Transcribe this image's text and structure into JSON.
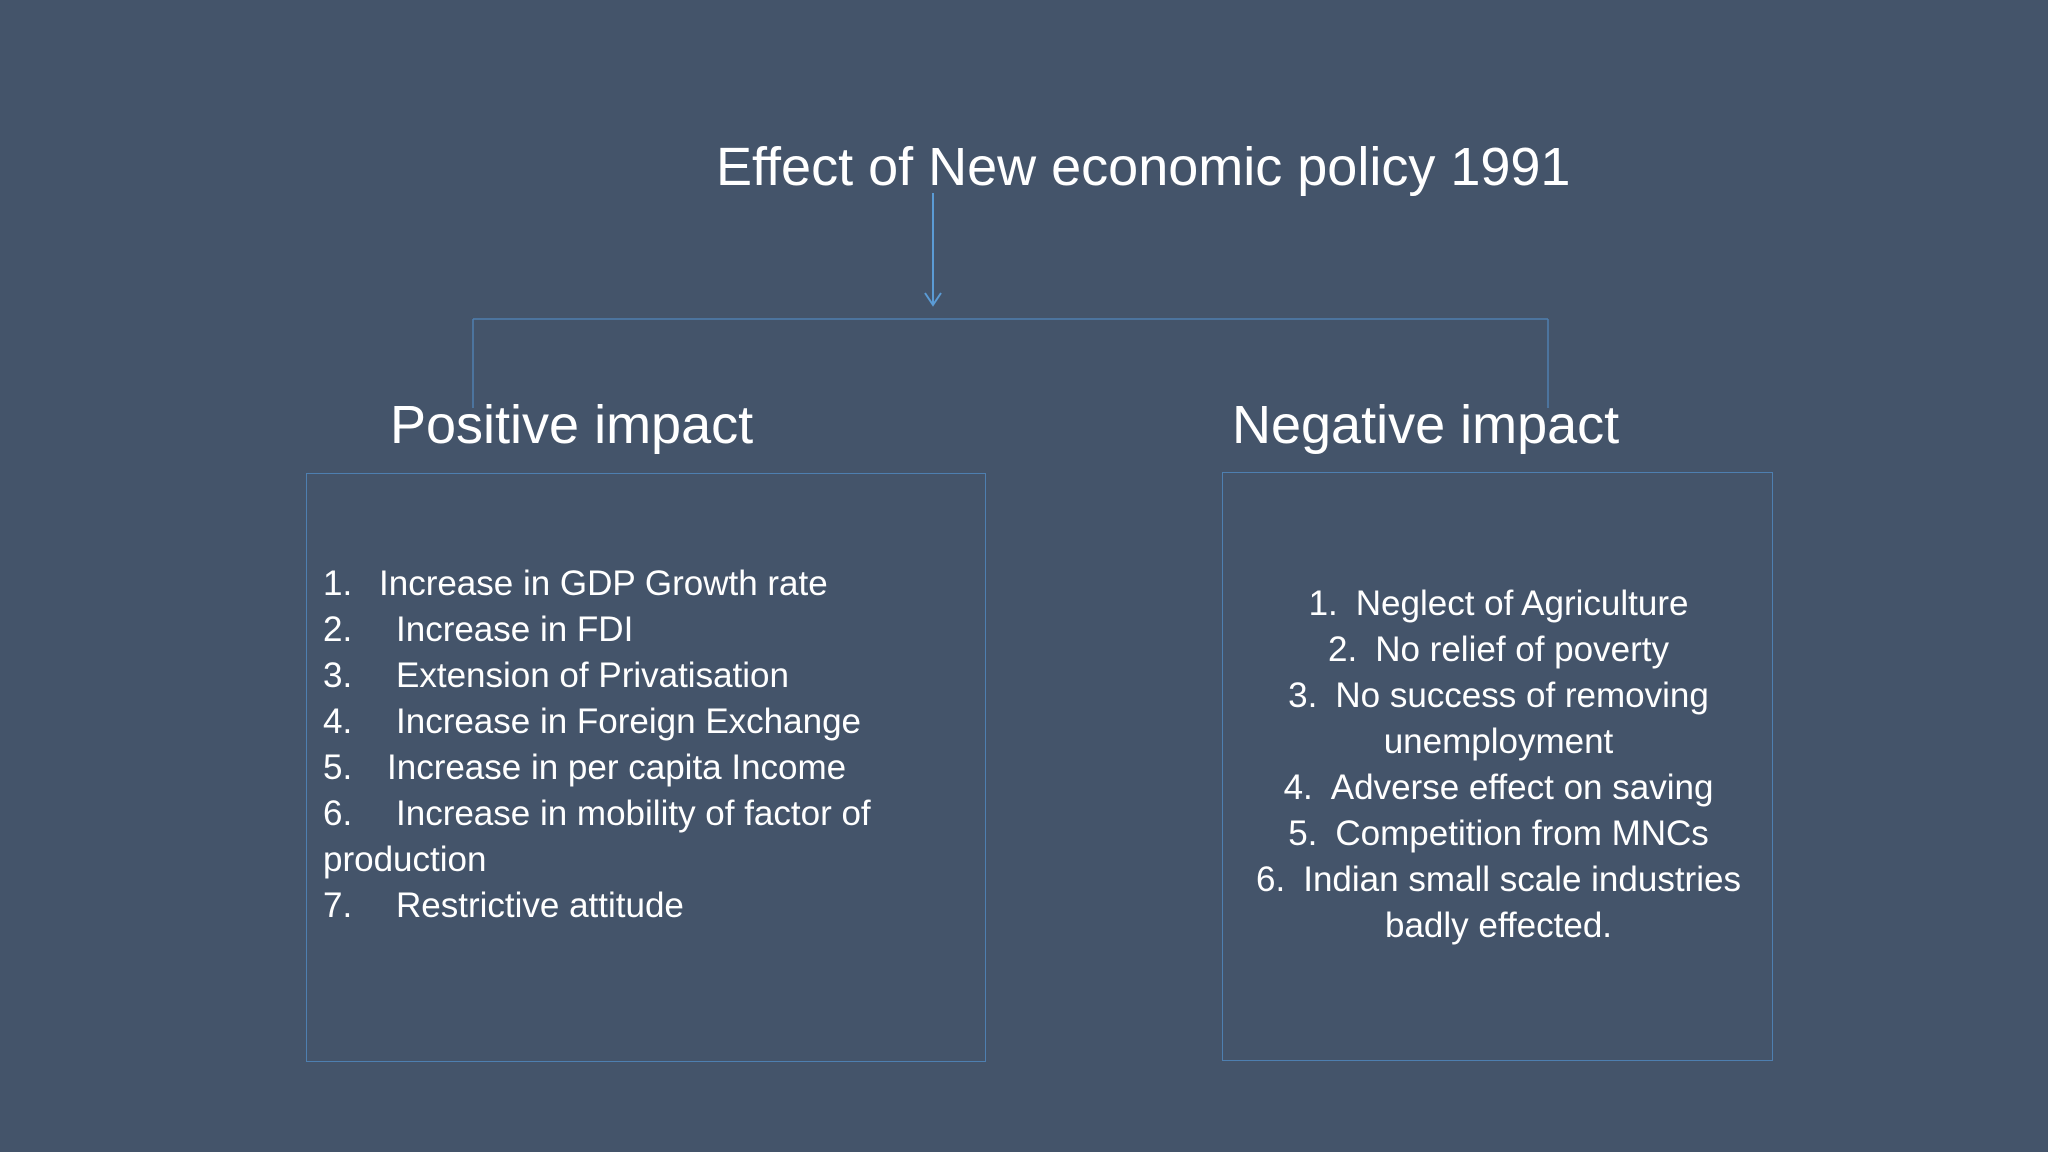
{
  "title": "Effect of New economic policy 1991",
  "colors": {
    "background": "#44546a",
    "connector": "#5b9bd5",
    "box_border": "#4e7fb0",
    "text": "#ffffff"
  },
  "positive": {
    "heading": "Positive impact",
    "items": [
      {
        "num": "1.",
        "text": "Increase in GDP Growth rate"
      },
      {
        "num": "2.",
        "text": "Increase in FDI"
      },
      {
        "num": "3.",
        "text": "Extension of Privatisation"
      },
      {
        "num": "4.",
        "text": "Increase in Foreign Exchange"
      },
      {
        "num": "5.",
        "text": "Increase in per capita Income"
      },
      {
        "num": "6.",
        "text": "Increase in mobility of factor of"
      },
      {
        "num": "",
        "text": "production"
      },
      {
        "num": "7.",
        "text": "Restrictive attitude"
      }
    ]
  },
  "negative": {
    "heading": "Negative impact",
    "items": [
      {
        "num": "1.",
        "text": "Neglect of Agriculture"
      },
      {
        "num": "2.",
        "text": "No relief of poverty"
      },
      {
        "num": "3.",
        "text": "No success of removing"
      },
      {
        "num": "",
        "text": "unemployment"
      },
      {
        "num": "4.",
        "text": "Adverse effect on saving"
      },
      {
        "num": "5.",
        "text": "Competition from MNCs"
      },
      {
        "num": "6.",
        "text": "Indian small scale industries"
      },
      {
        "num": "",
        "text": "badly effected."
      }
    ]
  }
}
